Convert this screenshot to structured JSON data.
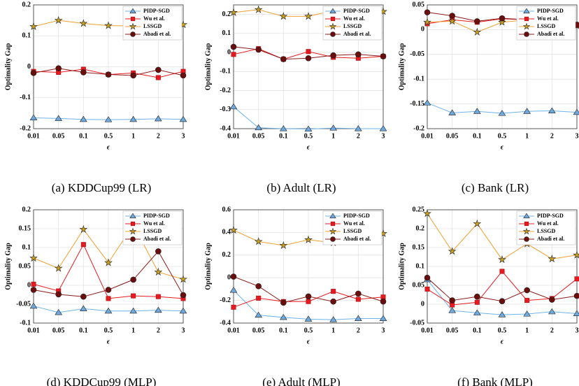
{
  "chart_data": [
    {
      "type": "line",
      "caption": "(a) KDDCup99 (LR)",
      "xlabel": "ϵ",
      "ylabel": "Optimality Gap",
      "categories": [
        "0.01",
        "0.05",
        "0.1",
        "0.5",
        "1",
        "2",
        "3"
      ],
      "ylim": [
        -0.2,
        0.2
      ],
      "yticks": [
        -0.2,
        -0.1,
        0,
        0.1,
        0.2
      ],
      "grid": true,
      "legend": "upper-right",
      "series": [
        {
          "name": "PIDP-SGD",
          "color": "#6fb3e8",
          "marker": "triangle",
          "values": [
            -0.165,
            -0.167,
            -0.17,
            -0.171,
            -0.17,
            -0.168,
            -0.17
          ]
        },
        {
          "name": "Wu et al.",
          "color": "#e8191f",
          "marker": "square",
          "values": [
            -0.015,
            -0.018,
            -0.008,
            -0.025,
            -0.02,
            -0.035,
            -0.015
          ]
        },
        {
          "name": "LSSGD",
          "color": "#f0a030",
          "marker": "star",
          "values": [
            0.13,
            0.15,
            0.14,
            0.133,
            0.132,
            0.16,
            0.136
          ]
        },
        {
          "name": "Abadi et al.",
          "color": "#8b1a1a",
          "marker": "circle",
          "values": [
            -0.02,
            -0.005,
            -0.018,
            -0.025,
            -0.028,
            -0.01,
            -0.028
          ]
        }
      ]
    },
    {
      "type": "line",
      "caption": "(b) Adult (LR)",
      "xlabel": "ϵ",
      "ylabel": "Optimality Gap",
      "categories": [
        "0.01",
        "0.05",
        "0.1",
        "0.5",
        "1",
        "2",
        "3"
      ],
      "ylim": [
        -0.4,
        0.25
      ],
      "yticks": [
        -0.4,
        -0.3,
        -0.2,
        -0.1,
        0,
        0.1,
        0.2
      ],
      "grid": true,
      "legend": "upper-right",
      "series": [
        {
          "name": "PIDP-SGD",
          "color": "#6fb3e8",
          "marker": "triangle",
          "values": [
            -0.285,
            -0.395,
            -0.4,
            -0.402,
            -0.397,
            -0.4,
            -0.4
          ]
        },
        {
          "name": "Wu et al.",
          "color": "#e8191f",
          "marker": "square",
          "values": [
            -0.01,
            0.02,
            -0.035,
            0.005,
            -0.025,
            -0.03,
            -0.02
          ]
        },
        {
          "name": "LSSGD",
          "color": "#f0a030",
          "marker": "star",
          "values": [
            0.21,
            0.225,
            0.19,
            0.19,
            0.22,
            0.2,
            0.215
          ]
        },
        {
          "name": "Abadi et al.",
          "color": "#8b1a1a",
          "marker": "circle",
          "values": [
            0.03,
            0.015,
            -0.035,
            -0.03,
            -0.015,
            -0.01,
            -0.02
          ]
        }
      ]
    },
    {
      "type": "line",
      "caption": "(c) Bank (LR)",
      "xlabel": "ϵ",
      "ylabel": "Optimality Gap",
      "categories": [
        "0.01",
        "0.05",
        "0.1",
        "0.5",
        "1",
        "2",
        "3"
      ],
      "ylim": [
        -0.2,
        0.05
      ],
      "yticks": [
        -0.2,
        -0.15,
        -0.1,
        -0.05,
        0,
        0.05
      ],
      "grid": true,
      "legend": "upper-right",
      "series": [
        {
          "name": "PIDP-SGD",
          "color": "#6fb3e8",
          "marker": "triangle",
          "values": [
            -0.148,
            -0.168,
            -0.165,
            -0.169,
            -0.165,
            -0.164,
            -0.167
          ]
        },
        {
          "name": "Wu et al.",
          "color": "#e8191f",
          "marker": "square",
          "values": [
            0.012,
            0.02,
            0.015,
            0.022,
            0.02,
            0.005,
            0.008
          ]
        },
        {
          "name": "LSSGD",
          "color": "#f0a030",
          "marker": "star",
          "values": [
            0.015,
            0.017,
            -0.005,
            0.015,
            0.02,
            0.01,
            0.008
          ]
        },
        {
          "name": "Abadi et al.",
          "color": "#8b1a1a",
          "marker": "circle",
          "values": [
            0.035,
            0.028,
            0.017,
            0.023,
            0.02,
            0.005,
            0.01
          ]
        }
      ]
    },
    {
      "type": "line",
      "caption": "(d) KDDCup99 (MLP)",
      "xlabel": "ϵ",
      "ylabel": "Optimality Gap",
      "categories": [
        "0.01",
        "0.05",
        "0.1",
        "0.5",
        "1",
        "2",
        "3"
      ],
      "ylim": [
        -0.1,
        0.2
      ],
      "yticks": [
        -0.1,
        -0.05,
        0,
        0.05,
        0.1,
        0.15,
        0.2
      ],
      "grid": true,
      "legend": "upper-right",
      "series": [
        {
          "name": "PIDP-SGD",
          "color": "#6fb3e8",
          "marker": "triangle",
          "values": [
            -0.055,
            -0.072,
            -0.062,
            -0.068,
            -0.068,
            -0.066,
            -0.068
          ]
        },
        {
          "name": "Wu et al.",
          "color": "#e8191f",
          "marker": "square",
          "values": [
            0.003,
            -0.015,
            0.108,
            -0.035,
            -0.028,
            -0.03,
            -0.035
          ]
        },
        {
          "name": "LSSGD",
          "color": "#f0a030",
          "marker": "star",
          "values": [
            0.072,
            0.045,
            0.148,
            0.06,
            0.16,
            0.035,
            0.016
          ]
        },
        {
          "name": "Abadi et al.",
          "color": "#8b1a1a",
          "marker": "circle",
          "values": [
            -0.012,
            -0.024,
            -0.03,
            -0.012,
            0.015,
            0.09,
            -0.026
          ]
        }
      ]
    },
    {
      "type": "line",
      "caption": "(e) Adult (MLP)",
      "xlabel": "ϵ",
      "ylabel": "Optimality Gap",
      "categories": [
        "0.01",
        "0.05",
        "0.1",
        "0.5",
        "1",
        "2",
        "3"
      ],
      "ylim": [
        -0.4,
        0.6
      ],
      "yticks": [
        -0.4,
        -0.2,
        0,
        0.2,
        0.4,
        0.6
      ],
      "grid": true,
      "legend": "upper-right",
      "series": [
        {
          "name": "PIDP-SGD",
          "color": "#6fb3e8",
          "marker": "triangle",
          "values": [
            -0.11,
            -0.33,
            -0.35,
            -0.365,
            -0.37,
            -0.36,
            -0.36
          ]
        },
        {
          "name": "Wu et al.",
          "color": "#e8191f",
          "marker": "square",
          "values": [
            -0.26,
            -0.18,
            -0.21,
            -0.21,
            -0.12,
            -0.19,
            -0.17
          ]
        },
        {
          "name": "LSSGD",
          "color": "#f0a030",
          "marker": "star",
          "values": [
            0.42,
            0.32,
            0.285,
            0.335,
            0.31,
            0.47,
            0.39
          ]
        },
        {
          "name": "Abadi et al.",
          "color": "#8b1a1a",
          "marker": "circle",
          "values": [
            0.01,
            -0.075,
            -0.22,
            -0.165,
            -0.21,
            -0.14,
            -0.21
          ]
        }
      ]
    },
    {
      "type": "line",
      "caption": "(f) Bank (MLP)",
      "xlabel": "ϵ",
      "ylabel": "Optimality Gap",
      "categories": [
        "0.01",
        "0.05",
        "0.1",
        "0.5",
        "1",
        "2",
        "3"
      ],
      "ylim": [
        -0.05,
        0.25
      ],
      "yticks": [
        -0.05,
        0,
        0.05,
        0.1,
        0.15,
        0.2,
        0.25
      ],
      "grid": true,
      "legend": "upper-right",
      "series": [
        {
          "name": "PIDP-SGD",
          "color": "#6fb3e8",
          "marker": "triangle",
          "values": [
            0.065,
            -0.017,
            -0.023,
            -0.028,
            -0.026,
            -0.02,
            -0.025
          ]
        },
        {
          "name": "Wu et al.",
          "color": "#e8191f",
          "marker": "square",
          "values": [
            0.04,
            -0.002,
            0.005,
            0.087,
            0.01,
            0.015,
            0.067
          ]
        },
        {
          "name": "LSSGD",
          "color": "#f0a030",
          "marker": "star",
          "values": [
            0.24,
            0.14,
            0.213,
            0.118,
            0.16,
            0.12,
            0.13
          ]
        },
        {
          "name": "Abadi et al.",
          "color": "#8b1a1a",
          "marker": "circle",
          "values": [
            0.07,
            0.01,
            0.02,
            0.008,
            0.037,
            0.012,
            0.022
          ]
        }
      ]
    }
  ]
}
